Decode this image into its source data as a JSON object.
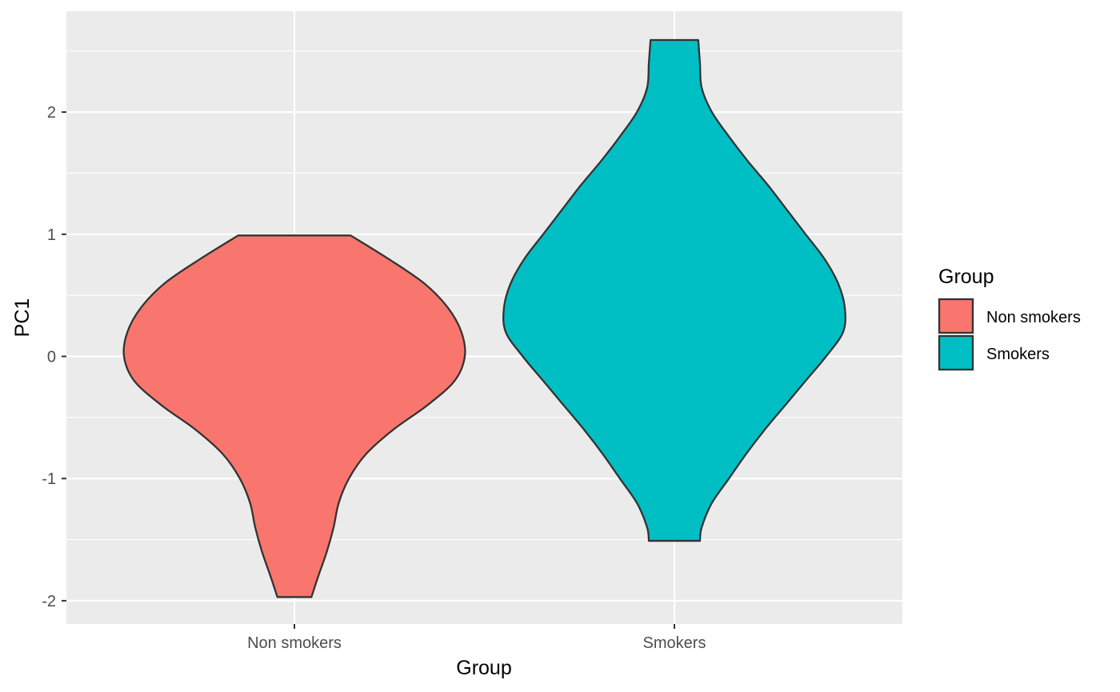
{
  "chart_data": {
    "type": "violin",
    "title": "",
    "xlabel": "Group",
    "ylabel": "PC1",
    "categories": [
      "Non smokers",
      "Smokers"
    ],
    "ylim": [
      -2.2,
      2.8
    ],
    "y_ticks": [
      -2,
      -1,
      0,
      1,
      2
    ],
    "y_tick_labels": [
      "-2",
      "-1",
      "0",
      "1",
      "2"
    ],
    "grid": true,
    "legend": {
      "title": "Group",
      "position": "right"
    },
    "series": [
      {
        "name": "Non smokers",
        "color": "#F8766D",
        "min": -1.97,
        "max": 0.99,
        "density_profile": [
          [
            0.99,
            0.33
          ],
          [
            0.8,
            0.55
          ],
          [
            0.6,
            0.76
          ],
          [
            0.4,
            0.9
          ],
          [
            0.2,
            0.98
          ],
          [
            0.0,
            1.0
          ],
          [
            -0.2,
            0.94
          ],
          [
            -0.4,
            0.78
          ],
          [
            -0.6,
            0.58
          ],
          [
            -0.8,
            0.42
          ],
          [
            -1.0,
            0.32
          ],
          [
            -1.2,
            0.26
          ],
          [
            -1.4,
            0.23
          ],
          [
            -1.6,
            0.19
          ],
          [
            -1.8,
            0.14
          ],
          [
            -1.97,
            0.1
          ]
        ]
      },
      {
        "name": "Smokers",
        "color": "#00BFC4",
        "min": -1.51,
        "max": 2.59,
        "density_profile": [
          [
            2.59,
            0.14
          ],
          [
            2.4,
            0.15
          ],
          [
            2.2,
            0.16
          ],
          [
            2.0,
            0.22
          ],
          [
            1.8,
            0.32
          ],
          [
            1.6,
            0.43
          ],
          [
            1.4,
            0.55
          ],
          [
            1.2,
            0.66
          ],
          [
            1.0,
            0.77
          ],
          [
            0.8,
            0.88
          ],
          [
            0.6,
            0.96
          ],
          [
            0.4,
            1.0
          ],
          [
            0.2,
            0.99
          ],
          [
            0.0,
            0.89
          ],
          [
            -0.2,
            0.77
          ],
          [
            -0.4,
            0.65
          ],
          [
            -0.6,
            0.53
          ],
          [
            -0.8,
            0.42
          ],
          [
            -1.0,
            0.32
          ],
          [
            -1.2,
            0.22
          ],
          [
            -1.4,
            0.16
          ],
          [
            -1.51,
            0.15
          ]
        ]
      }
    ]
  }
}
